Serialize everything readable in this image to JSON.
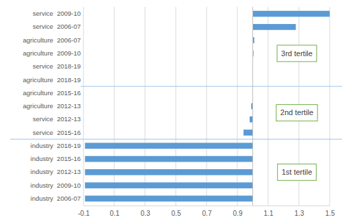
{
  "chart_data": {
    "type": "bar",
    "orientation": "horizontal",
    "categories": [
      "service  2009-10",
      "service  2006-07",
      "agriculture  2006-07",
      "agriculture  2009-10",
      "service  2018-19",
      "agriculture  2018-19",
      "agriculture  2015-16",
      "agriculture  2012-13",
      "service  2012-13",
      "service  2015-16",
      "industry  2018-19",
      "industry  2015-16",
      "industry  2012-13",
      "industry  2009-10",
      "industry  2006-07"
    ],
    "values": [
      1.5,
      1.28,
      1.01,
      1.005,
      1.0,
      1.0,
      0.998,
      0.99,
      0.98,
      0.94,
      -0.09,
      -0.09,
      -0.09,
      -0.09,
      -0.09
    ],
    "baseline": 1,
    "color": "#5b9bd5",
    "xlim": [
      -0.1,
      1.5
    ],
    "xticks": [
      -0.1,
      0.1,
      0.3,
      0.5,
      0.7,
      0.9,
      1.1,
      1.3,
      1.5
    ],
    "grid": true,
    "annotations": [
      "3rd tertile",
      "2nd tertile",
      "1st tertile"
    ]
  }
}
